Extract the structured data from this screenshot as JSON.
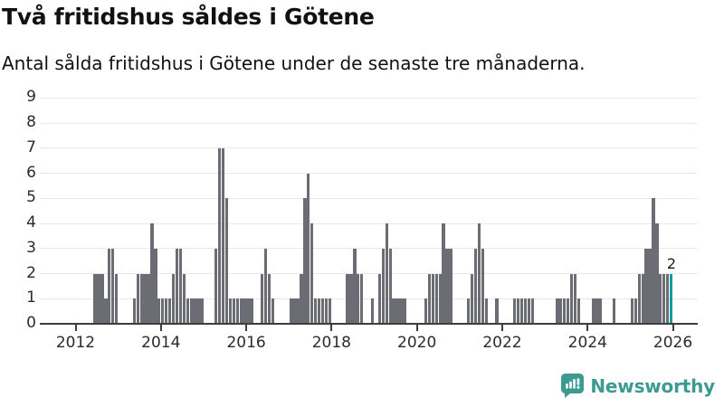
{
  "header": {
    "title": "Två fritidshus såldes i Götene",
    "subtitle": "Antal sålda fritidshus i Götene under de senaste tre månaderna."
  },
  "chart_data": {
    "type": "bar",
    "title": "Två fritidshus såldes i Götene",
    "subtitle": "Antal sålda fritidshus i Götene under de senaste tre månaderna.",
    "x_start_month": "2012-01",
    "x_axis_ticks": [
      2012,
      2014,
      2016,
      2018,
      2020,
      2022,
      2024,
      2026
    ],
    "y_axis_ticks": [
      0,
      1,
      2,
      3,
      4,
      5,
      6,
      7,
      8,
      9
    ],
    "ylim": [
      0,
      9
    ],
    "grid": "horizontal",
    "series": [
      {
        "year": 2012,
        "monthly_values": [
          0,
          0,
          0,
          0,
          0,
          2,
          2,
          2,
          1,
          3,
          3,
          2
        ]
      },
      {
        "year": 2013,
        "monthly_values": [
          0,
          0,
          0,
          0,
          1,
          2,
          2,
          2,
          2,
          4,
          3,
          1
        ]
      },
      {
        "year": 2014,
        "monthly_values": [
          1,
          1,
          1,
          2,
          3,
          3,
          2,
          1,
          1,
          1,
          1,
          1
        ]
      },
      {
        "year": 2015,
        "monthly_values": [
          0,
          0,
          0,
          3,
          7,
          7,
          5,
          1,
          1,
          1,
          1,
          1
        ]
      },
      {
        "year": 2016,
        "monthly_values": [
          1,
          1,
          0,
          0,
          2,
          3,
          2,
          1,
          0,
          0,
          0,
          0
        ]
      },
      {
        "year": 2017,
        "monthly_values": [
          1,
          1,
          1,
          2,
          5,
          6,
          4,
          1,
          1,
          1,
          1,
          1
        ]
      },
      {
        "year": 2018,
        "monthly_values": [
          0,
          0,
          0,
          0,
          2,
          2,
          3,
          2,
          2,
          0,
          0,
          1
        ]
      },
      {
        "year": 2019,
        "monthly_values": [
          0,
          2,
          3,
          4,
          3,
          1,
          1,
          1,
          1,
          0,
          0,
          0
        ]
      },
      {
        "year": 2020,
        "monthly_values": [
          0,
          0,
          1,
          2,
          2,
          2,
          2,
          4,
          3,
          3,
          0,
          0
        ]
      },
      {
        "year": 2021,
        "monthly_values": [
          0,
          0,
          1,
          2,
          3,
          4,
          3,
          1,
          0,
          0,
          1,
          0
        ]
      },
      {
        "year": 2022,
        "monthly_values": [
          0,
          0,
          0,
          1,
          1,
          1,
          1,
          1,
          1,
          0,
          0,
          0
        ]
      },
      {
        "year": 2023,
        "monthly_values": [
          0,
          0,
          0,
          1,
          1,
          1,
          1,
          2,
          2,
          1,
          0,
          0
        ]
      },
      {
        "year": 2024,
        "monthly_values": [
          0,
          1,
          1,
          1,
          0,
          0,
          0,
          1,
          0,
          0,
          0,
          0
        ]
      },
      {
        "year": 2025,
        "monthly_values": [
          1,
          1,
          2,
          2,
          3,
          3,
          5,
          4,
          2,
          2,
          2,
          2
        ]
      }
    ],
    "highlight": {
      "position": "last-bar",
      "value": 2,
      "label": "2"
    },
    "colors": {
      "bar": "#6c6c74",
      "highlight_bar": "#0f9e99",
      "gridline": "#e8e8e8",
      "axis": "#3d3d3d",
      "text": "#1a1a1a"
    }
  },
  "branding": {
    "logo_text": "Newsworthy",
    "logo_color": "#3d9a92",
    "logo_icon": "speech-bubble-with-bar-chart-and-exclamation"
  }
}
